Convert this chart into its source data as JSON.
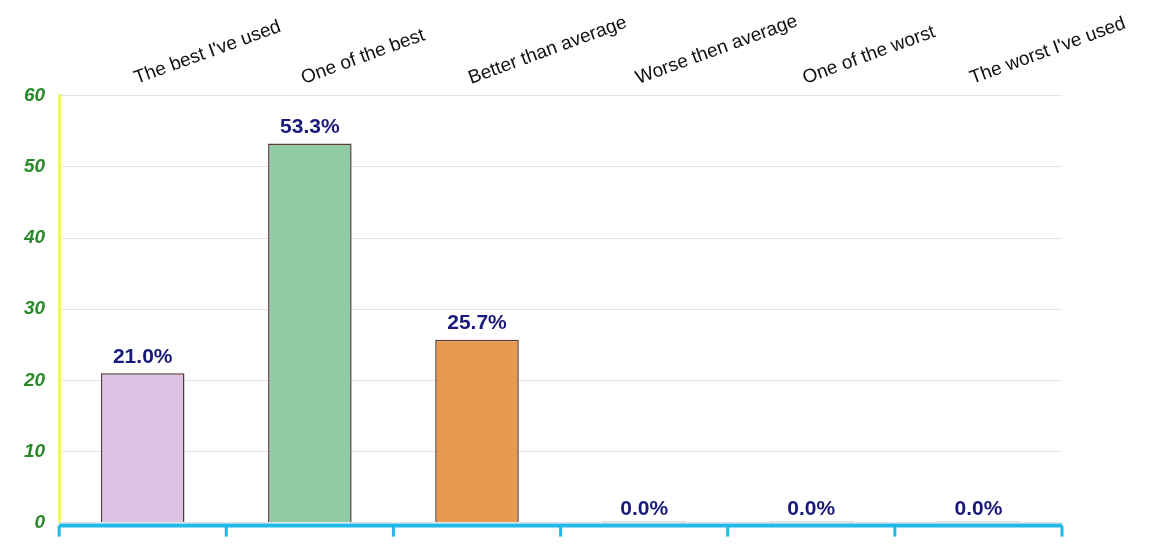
{
  "chart_data": {
    "type": "bar",
    "categories": [
      "The best I've used",
      "One of the best",
      "Better than average",
      "Worse then average",
      "One of the worst",
      "The worst I've used"
    ],
    "values": [
      21.0,
      53.3,
      25.7,
      0.0,
      0.0,
      0.0
    ],
    "colors": [
      "#dcc3e3",
      "#8fcba3",
      "#e89a4e",
      "#8fcba3",
      "#8fcba3",
      "#8fcba3"
    ],
    "value_labels": [
      "21.0%",
      "53.3%",
      "25.7%",
      "0.0%",
      "0.0%",
      "0.0%"
    ],
    "ylim": [
      0,
      60
    ],
    "yticks": [
      0,
      10,
      20,
      30,
      40,
      50,
      60
    ],
    "grid": "y",
    "legend": false
  }
}
